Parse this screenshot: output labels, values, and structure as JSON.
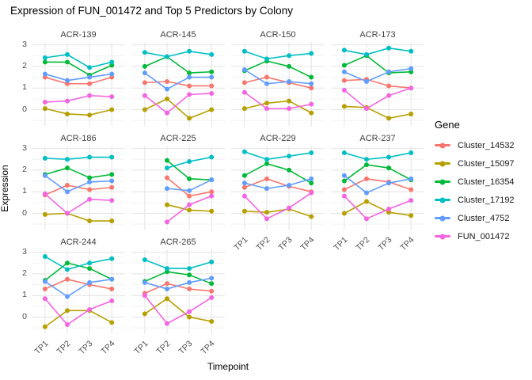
{
  "chart_data": {
    "type": "line",
    "title": "Expression of FUN_001472 and Top 5 Predictors by Colony",
    "xlabel": "Timepoint",
    "ylabel": "Expression",
    "legend_title": "Gene",
    "legend_position": "right",
    "grid": true,
    "x": [
      "TP1",
      "TP2",
      "TP3",
      "TP4"
    ],
    "yticks": [
      0,
      1,
      2,
      3
    ],
    "ylim": [
      -0.8,
      3.1
    ],
    "genes": [
      {
        "name": "Cluster_14532",
        "color": "#F8766D"
      },
      {
        "name": "Cluster_15097",
        "color": "#B79F00"
      },
      {
        "name": "Cluster_16354",
        "color": "#00BA38"
      },
      {
        "name": "Cluster_17192",
        "color": "#00BFC4"
      },
      {
        "name": "Cluster_4752",
        "color": "#619CFF"
      },
      {
        "name": "FUN_001472",
        "color": "#F564E2"
      }
    ],
    "facets": [
      {
        "colony": "ACR-139",
        "grid": [
          0,
          0
        ],
        "values": [
          [
            1.5,
            1.2,
            1.2,
            1.5
          ],
          [
            0.05,
            -0.2,
            -0.25,
            0.0
          ],
          [
            2.2,
            2.2,
            1.6,
            2.05
          ],
          [
            2.4,
            2.55,
            1.95,
            2.2
          ],
          [
            1.65,
            1.35,
            1.5,
            1.65
          ],
          [
            0.35,
            0.4,
            0.65,
            0.6
          ]
        ]
      },
      {
        "colony": "ACR-145",
        "grid": [
          0,
          1
        ],
        "values": [
          [
            1.25,
            1.3,
            1.1,
            1.1
          ],
          [
            0.0,
            0.5,
            -0.4,
            0.0
          ],
          [
            2.0,
            2.45,
            1.7,
            1.75
          ],
          [
            2.65,
            2.45,
            2.7,
            2.55
          ],
          [
            1.7,
            0.95,
            1.5,
            1.5
          ],
          [
            0.65,
            -0.15,
            0.7,
            0.75
          ]
        ]
      },
      {
        "colony": "ACR-150",
        "grid": [
          0,
          2
        ],
        "values": [
          [
            1.25,
            1.5,
            1.25,
            1.0
          ],
          [
            0.05,
            0.3,
            0.4,
            -0.15
          ],
          [
            1.8,
            2.25,
            2.0,
            1.5
          ],
          [
            2.7,
            2.35,
            2.5,
            2.6
          ],
          [
            1.85,
            1.2,
            1.3,
            1.2
          ],
          [
            0.8,
            0.05,
            0.05,
            0.25
          ]
        ]
      },
      {
        "colony": "ACR-173",
        "grid": [
          0,
          3
        ],
        "values": [
          [
            1.35,
            1.4,
            1.1,
            1.0
          ],
          [
            0.15,
            0.1,
            -0.4,
            -0.2
          ],
          [
            2.05,
            2.5,
            1.7,
            1.75
          ],
          [
            2.75,
            2.55,
            2.85,
            2.7
          ],
          [
            1.75,
            1.3,
            1.75,
            1.9
          ],
          [
            0.9,
            0.05,
            0.65,
            1.0
          ]
        ]
      },
      {
        "colony": "ACR-186",
        "grid": [
          1,
          0
        ],
        "values": [
          [
            0.85,
            1.3,
            1.1,
            1.2
          ],
          [
            -0.05,
            0.0,
            -0.35,
            -0.35
          ],
          [
            1.8,
            2.1,
            1.65,
            1.8
          ],
          [
            2.55,
            2.5,
            2.6,
            2.6
          ],
          [
            1.75,
            1.0,
            1.45,
            1.5
          ],
          [
            0.9,
            0.0,
            0.65,
            0.6
          ]
        ]
      },
      {
        "colony": "ACR-225",
        "grid": [
          1,
          1
        ],
        "values": [
          [
            null,
            1.65,
            0.8,
            1.0
          ],
          [
            null,
            0.4,
            0.15,
            0.1
          ],
          [
            null,
            2.45,
            1.6,
            1.55
          ],
          [
            null,
            2.1,
            2.4,
            2.6
          ],
          [
            null,
            1.15,
            1.05,
            1.55
          ],
          [
            null,
            -0.4,
            0.4,
            0.8
          ]
        ]
      },
      {
        "colony": "ACR-229",
        "grid": [
          1,
          2
        ],
        "values": [
          [
            1.2,
            1.6,
            1.25,
            1.0
          ],
          [
            0.1,
            0.05,
            0.2,
            -0.15
          ],
          [
            1.75,
            2.3,
            2.0,
            1.4
          ],
          [
            2.85,
            2.5,
            2.65,
            2.8
          ],
          [
            1.4,
            1.15,
            1.3,
            1.6
          ],
          [
            0.8,
            -0.25,
            0.25,
            0.95
          ]
        ]
      },
      {
        "colony": "ACR-237",
        "grid": [
          1,
          3
        ],
        "values": [
          [
            1.1,
            1.6,
            1.45,
            1.1
          ],
          [
            0.0,
            0.55,
            0.05,
            -0.1
          ],
          [
            1.5,
            2.25,
            2.1,
            1.55
          ],
          [
            2.8,
            2.5,
            2.6,
            2.8
          ],
          [
            1.75,
            0.95,
            1.4,
            1.6
          ],
          [
            0.8,
            -0.25,
            0.2,
            0.6
          ]
        ]
      },
      {
        "colony": "ACR-244",
        "grid": [
          2,
          0
        ],
        "values": [
          [
            1.3,
            1.75,
            1.5,
            1.3
          ],
          [
            -0.45,
            0.3,
            0.3,
            -0.25
          ],
          [
            1.7,
            2.5,
            2.25,
            1.75
          ],
          [
            2.8,
            2.2,
            2.5,
            2.7
          ],
          [
            1.65,
            0.95,
            1.6,
            1.75
          ],
          [
            0.85,
            -0.35,
            0.35,
            0.75
          ]
        ]
      },
      {
        "colony": "ACR-265",
        "grid": [
          2,
          1
        ],
        "values": [
          [
            1.1,
            1.55,
            1.3,
            1.2
          ],
          [
            0.15,
            0.85,
            0.0,
            -0.2
          ],
          [
            1.65,
            2.1,
            1.95,
            1.55
          ],
          [
            2.65,
            2.25,
            2.25,
            2.55
          ],
          [
            1.6,
            1.3,
            1.6,
            1.8
          ],
          [
            1.0,
            -0.3,
            0.25,
            0.9
          ]
        ]
      }
    ]
  }
}
